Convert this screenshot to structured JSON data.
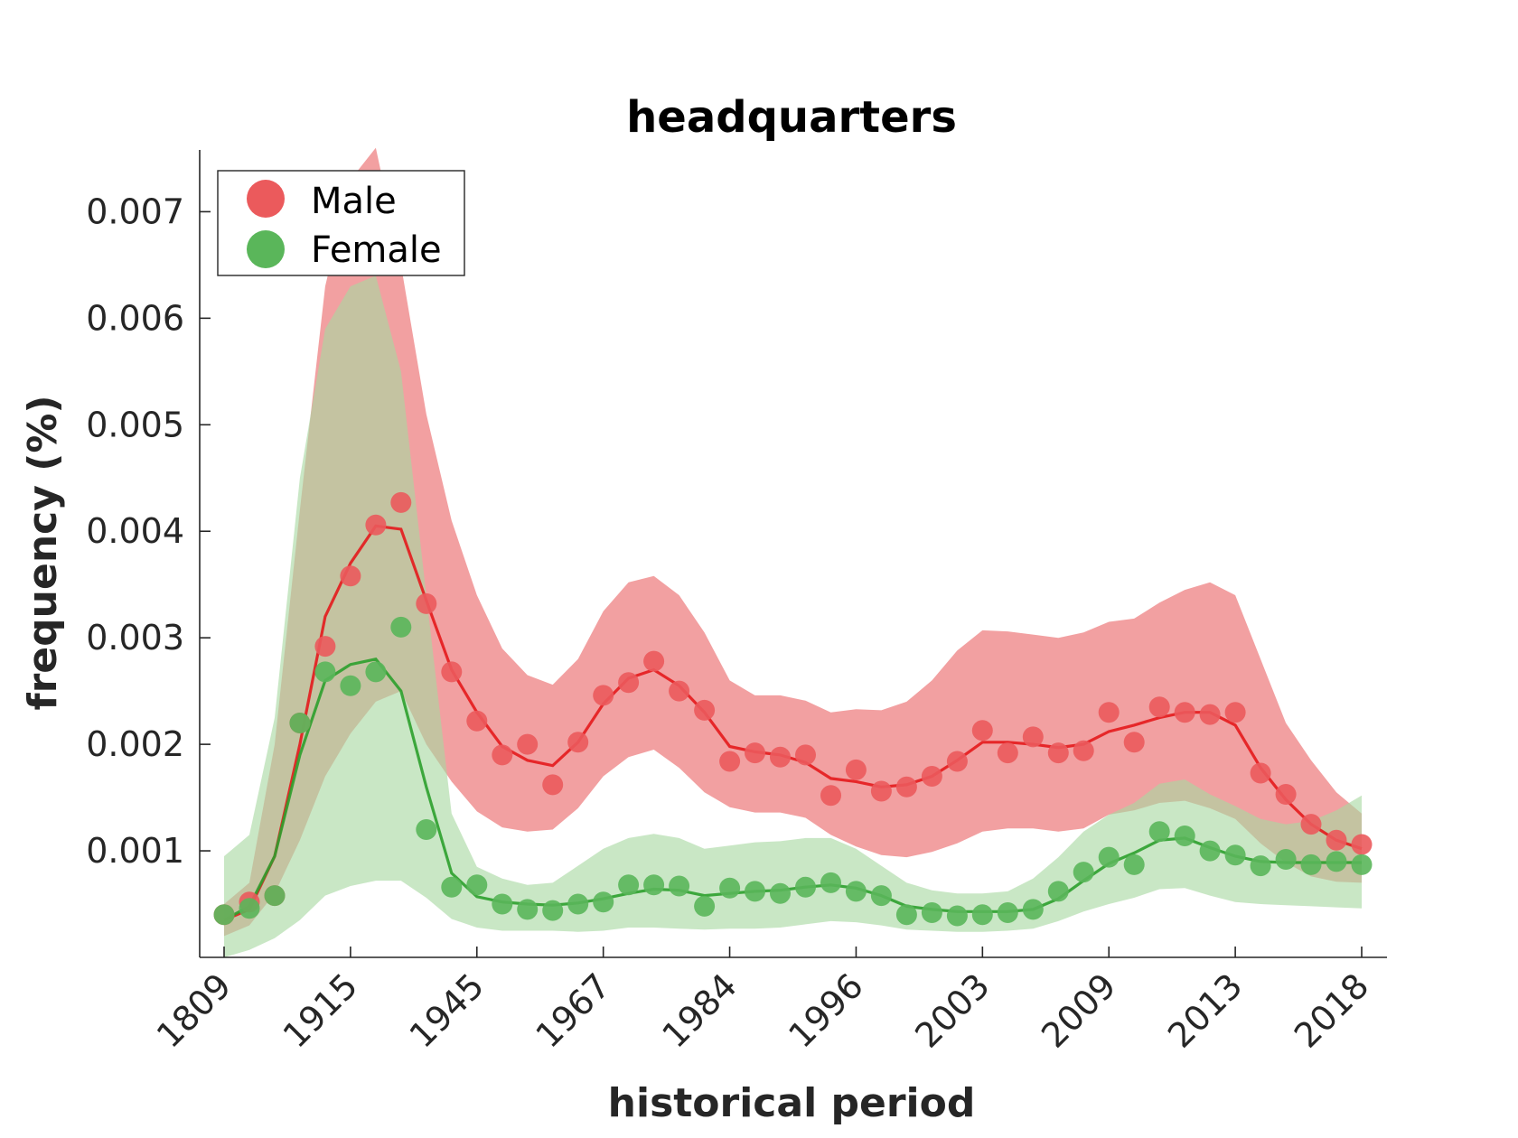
{
  "chart_data": {
    "type": "line",
    "title": "headquarters",
    "xlabel": "historical period",
    "ylabel": "frequency (%)",
    "categories": [
      "1809",
      "1915",
      "1945",
      "1967",
      "1984",
      "1996",
      "2003",
      "2009",
      "2013",
      "2018"
    ],
    "ylim": [
      0,
      0.00758
    ],
    "yticks": [
      0.001,
      0.002,
      0.003,
      0.004,
      0.005,
      0.006,
      0.007
    ],
    "ytick_labels": [
      "0.001",
      "0.002",
      "0.003",
      "0.004",
      "0.005",
      "0.006",
      "0.007"
    ],
    "legend_position": "top-left",
    "grid": false,
    "series": [
      {
        "name": "Male",
        "color": "#e41a1c",
        "point_color": "#eb5a5c",
        "band_color": "#ee8587",
        "points": [
          0.0004,
          0.00052,
          0.00058,
          0.0022,
          0.00292,
          0.00358,
          0.00406,
          0.00427,
          0.00332,
          0.00268,
          0.00222,
          0.0019,
          0.002,
          0.00162,
          0.00202,
          0.00246,
          0.00258,
          0.00278,
          0.0025,
          0.00232,
          0.00184,
          0.00192,
          0.00188,
          0.0019,
          0.00152,
          0.00176,
          0.00156,
          0.0016,
          0.0017,
          0.00184,
          0.00213,
          0.00192,
          0.00207,
          0.00192,
          0.00194,
          0.0023,
          0.00202,
          0.00235,
          0.0023,
          0.00228,
          0.0023,
          0.00173,
          0.00153,
          0.00125,
          0.0011,
          0.00106
        ],
        "smooth": [
          0.00035,
          0.00045,
          0.00095,
          0.002,
          0.0032,
          0.0037,
          0.00405,
          0.00402,
          0.00335,
          0.0027,
          0.0023,
          0.00198,
          0.00185,
          0.0018,
          0.00202,
          0.00238,
          0.00262,
          0.0027,
          0.00255,
          0.0023,
          0.00198,
          0.00193,
          0.0019,
          0.00183,
          0.00168,
          0.00165,
          0.0016,
          0.00162,
          0.0017,
          0.00185,
          0.00202,
          0.00202,
          0.002,
          0.00197,
          0.002,
          0.00212,
          0.00218,
          0.00225,
          0.0023,
          0.0023,
          0.00218,
          0.00178,
          0.00148,
          0.00125,
          0.0011,
          0.00102
        ],
        "band_upper": [
          0.0005,
          0.0007,
          0.002,
          0.0042,
          0.0063,
          0.0073,
          0.0076,
          0.0065,
          0.0051,
          0.0041,
          0.0034,
          0.0029,
          0.00265,
          0.00256,
          0.0028,
          0.00325,
          0.00352,
          0.00358,
          0.0034,
          0.00305,
          0.0026,
          0.00246,
          0.00246,
          0.00241,
          0.0023,
          0.00233,
          0.00232,
          0.0024,
          0.0026,
          0.00288,
          0.00307,
          0.00306,
          0.00303,
          0.003,
          0.00305,
          0.00315,
          0.00318,
          0.00333,
          0.00345,
          0.00352,
          0.0034,
          0.0028,
          0.0022,
          0.00185,
          0.00155,
          0.00135
        ],
        "band_lower": [
          0.0002,
          0.0003,
          0.0006,
          0.0011,
          0.0017,
          0.0021,
          0.0024,
          0.0025,
          0.002,
          0.00165,
          0.00137,
          0.00122,
          0.00118,
          0.0012,
          0.0014,
          0.0017,
          0.00188,
          0.00195,
          0.00178,
          0.00155,
          0.00141,
          0.00136,
          0.00136,
          0.00131,
          0.00115,
          0.00104,
          0.00096,
          0.00094,
          0.00099,
          0.00107,
          0.00118,
          0.00121,
          0.00121,
          0.00118,
          0.00121,
          0.00134,
          0.00138,
          0.00145,
          0.00147,
          0.0014,
          0.0013,
          0.00107,
          0.00089,
          0.00076,
          0.00071,
          0.0007
        ]
      },
      {
        "name": "Female",
        "color": "#2ca02c",
        "point_color": "#5ab65a",
        "band_color": "#a8d8a2",
        "points": [
          0.0004,
          0.00046,
          0.00058,
          0.0022,
          0.00268,
          0.00255,
          0.00268,
          0.0031,
          0.0012,
          0.00066,
          0.00068,
          0.0005,
          0.00045,
          0.00044,
          0.0005,
          0.00052,
          0.00068,
          0.00068,
          0.00067,
          0.00048,
          0.00065,
          0.00062,
          0.0006,
          0.00066,
          0.0007,
          0.00062,
          0.00058,
          0.0004,
          0.00042,
          0.00039,
          0.0004,
          0.00042,
          0.00045,
          0.00062,
          0.0008,
          0.00094,
          0.00087,
          0.00118,
          0.00114,
          0.001,
          0.00096,
          0.00086,
          0.00092,
          0.00087,
          0.0009,
          0.00087
        ],
        "smooth": [
          0.00035,
          0.00048,
          0.00095,
          0.0019,
          0.0026,
          0.00275,
          0.0028,
          0.0025,
          0.0016,
          0.00079,
          0.00057,
          0.00052,
          0.0005,
          0.00049,
          0.00051,
          0.00055,
          0.0006,
          0.00064,
          0.00063,
          0.00058,
          0.0006,
          0.00062,
          0.00063,
          0.00066,
          0.00068,
          0.00065,
          0.00058,
          0.00048,
          0.00045,
          0.00043,
          0.00043,
          0.00043,
          0.00045,
          0.00055,
          0.00072,
          0.00088,
          0.00098,
          0.0011,
          0.00112,
          0.00103,
          0.00095,
          0.0009,
          0.00089,
          0.00089,
          0.00089,
          0.00089
        ],
        "band_upper": [
          0.00095,
          0.00115,
          0.00225,
          0.0045,
          0.0059,
          0.0063,
          0.0064,
          0.0055,
          0.0034,
          0.00135,
          0.00085,
          0.00074,
          0.00068,
          0.0007,
          0.00086,
          0.00102,
          0.00112,
          0.00116,
          0.00112,
          0.00102,
          0.00105,
          0.00108,
          0.00109,
          0.00112,
          0.00112,
          0.00102,
          0.00086,
          0.0007,
          0.00063,
          0.0006,
          0.0006,
          0.00062,
          0.00074,
          0.00094,
          0.00118,
          0.00134,
          0.00145,
          0.00163,
          0.00167,
          0.00153,
          0.00142,
          0.0013,
          0.00125,
          0.00128,
          0.00138,
          0.00152
        ],
        "band_lower": [
          0,
          7e-05,
          0.00018,
          0.00035,
          0.00058,
          0.00067,
          0.00072,
          0.00072,
          0.00056,
          0.00036,
          0.00028,
          0.00025,
          0.00025,
          0.00025,
          0.00024,
          0.00025,
          0.00028,
          0.00028,
          0.00027,
          0.00026,
          0.00027,
          0.00027,
          0.00028,
          0.00031,
          0.00034,
          0.00033,
          0.0003,
          0.00026,
          0.00025,
          0.00024,
          0.00024,
          0.00025,
          0.00027,
          0.00034,
          0.00043,
          0.0005,
          0.00056,
          0.00064,
          0.00065,
          0.00058,
          0.00052,
          0.0005,
          0.00049,
          0.00048,
          0.00047,
          0.00046
        ]
      }
    ]
  }
}
